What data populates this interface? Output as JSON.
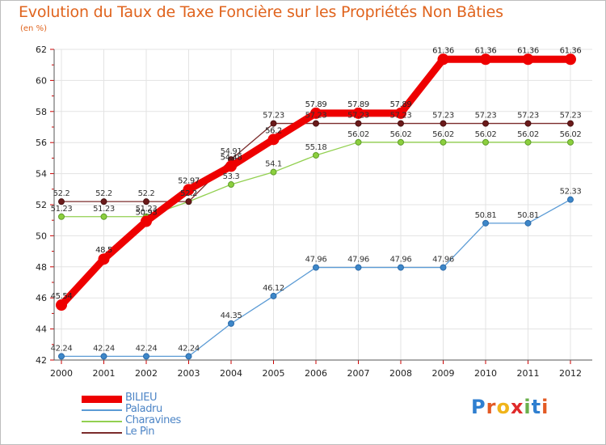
{
  "chart_data": {
    "type": "line",
    "title": "Evolution du Taux de Taxe Foncière sur les Propriétés Non Bâties",
    "subtitle": "(en %)",
    "x": [
      "2000",
      "2001",
      "2002",
      "2003",
      "2004",
      "2005",
      "2006",
      "2007",
      "2008",
      "2009",
      "2010",
      "2011",
      "2012"
    ],
    "ylim": [
      42,
      62
    ],
    "yticks": [
      42,
      44,
      46,
      48,
      50,
      52,
      54,
      56,
      58,
      60,
      62
    ],
    "grid": true,
    "legend": "bottom-left",
    "series": [
      {
        "name": "BILIEU",
        "color": "#ee0000",
        "values": [
          45.54,
          48.5,
          50.93,
          52.97,
          54.48,
          56.2,
          57.89,
          57.89,
          57.89,
          61.36,
          61.36,
          61.36,
          61.36
        ],
        "labels": [
          "45.54",
          "48.5",
          "50.93",
          "52.97",
          "54.48",
          "56.2",
          "57.89",
          "57.89",
          "57.89",
          "61.36",
          "61.36",
          "61.36",
          "61.36"
        ]
      },
      {
        "name": "Paladru",
        "color": "#5b9bd5",
        "values": [
          42.24,
          42.24,
          42.24,
          42.24,
          44.35,
          46.12,
          47.96,
          47.96,
          47.96,
          47.96,
          50.81,
          50.81,
          52.33
        ],
        "labels": [
          "42.24",
          "42.24",
          "42.24",
          "42.24",
          "44.35",
          "46.12",
          "47.96",
          "47.96",
          "47.96",
          "47.96",
          "50.81",
          "50.81",
          "52.33"
        ]
      },
      {
        "name": "Charavines",
        "color": "#92d050",
        "values": [
          51.23,
          51.23,
          51.23,
          52.2,
          53.3,
          54.1,
          55.18,
          56.02,
          56.02,
          56.02,
          56.02,
          56.02,
          56.02
        ],
        "labels": [
          "51.23",
          "51.23",
          "51.23",
          "52.2",
          "53.3",
          "54.1",
          "55.18",
          "56.02",
          "56.02",
          "56.02",
          "56.02",
          "56.02",
          "56.02"
        ]
      },
      {
        "name": "Le Pin",
        "color": "#7b2c2c",
        "values": [
          52.2,
          52.2,
          52.2,
          52.2,
          54.91,
          57.23,
          57.23,
          57.23,
          57.23,
          57.23,
          57.23,
          57.23,
          57.23
        ],
        "labels": [
          "52.2",
          "52.2",
          "52.2",
          "52.2",
          "54.91",
          "57.23",
          "57.23",
          "57.23",
          "57.23",
          "57.23",
          "57.23",
          "57.23",
          "57.23"
        ]
      }
    ]
  },
  "logo": {
    "text": "Proxiti",
    "letters": [
      "P",
      "r",
      "o",
      "x",
      "i",
      "t",
      "i"
    ],
    "colors": [
      "#2f7fd0",
      "#e35a24",
      "#f0b41a",
      "#e02a2a",
      "#6ab04c",
      "#2f7fd0",
      "#e35a24"
    ]
  }
}
